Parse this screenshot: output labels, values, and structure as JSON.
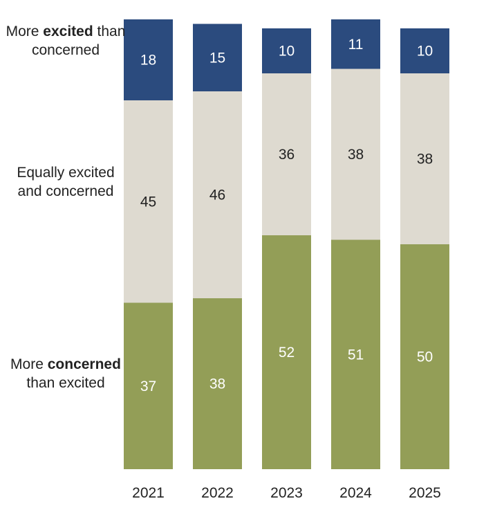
{
  "chart_data": {
    "type": "bar",
    "stacked": true,
    "orientation": "vertical",
    "categories": [
      "2021",
      "2022",
      "2023",
      "2024",
      "2025"
    ],
    "series": [
      {
        "name": "More excited than concerned",
        "label_parts": [
          "More ",
          "excited",
          " than concerned"
        ],
        "color": "#2b4b7e",
        "text_color": "#ffffff",
        "values": [
          18,
          15,
          10,
          11,
          10
        ]
      },
      {
        "name": "Equally excited and concerned",
        "label_parts": [
          "Equally excited and concerned"
        ],
        "color": "#dedad0",
        "text_color": "#222222",
        "values": [
          45,
          46,
          36,
          38,
          38
        ]
      },
      {
        "name": "More concerned than excited",
        "label_parts": [
          "More ",
          "concerned",
          " than excited"
        ],
        "color": "#939e57",
        "text_color": "#ffffff",
        "values": [
          37,
          38,
          52,
          51,
          50
        ]
      }
    ],
    "legend_placement": "left",
    "grid": false,
    "value_labels": true
  }
}
